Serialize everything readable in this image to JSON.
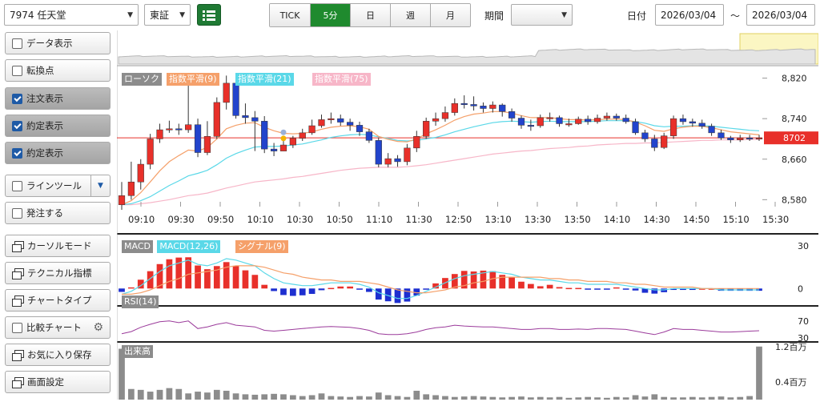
{
  "toolbar": {
    "stock": "7974 任天堂",
    "market": "東証",
    "tabs": [
      "TICK",
      "5分",
      "日",
      "週",
      "月"
    ],
    "active_tab": "5分",
    "period_label": "期間",
    "period_value": "",
    "date_label": "日付",
    "date_from": "2026/03/04",
    "tilde": "～",
    "date_to": "2026/03/04"
  },
  "sidebar": {
    "items": [
      {
        "label": "データ表示",
        "kind": "check",
        "checked": false,
        "active": false
      },
      {
        "label": "転換点",
        "kind": "check",
        "checked": false,
        "active": false
      },
      {
        "label": "注文表示",
        "kind": "check",
        "checked": true,
        "active": true
      },
      {
        "label": "約定表示",
        "kind": "check",
        "checked": true,
        "active": true
      },
      {
        "label": "約定表示",
        "kind": "check",
        "checked": true,
        "active": true
      },
      {
        "label": "ラインツール",
        "kind": "check-dd",
        "checked": false,
        "active": false
      },
      {
        "label": "発注する",
        "kind": "check",
        "checked": false,
        "active": false
      },
      {
        "label": "カーソルモード",
        "kind": "icon",
        "checked": false,
        "active": false
      },
      {
        "label": "テクニカル指標",
        "kind": "icon",
        "checked": false,
        "active": false
      },
      {
        "label": "チャートタイプ",
        "kind": "icon",
        "checked": false,
        "active": false
      },
      {
        "label": "比較チャート",
        "kind": "check-gear",
        "checked": false,
        "active": false
      },
      {
        "label": "お気に入り保存",
        "kind": "icon",
        "checked": false,
        "active": false
      },
      {
        "label": "画面設定",
        "kind": "icon",
        "checked": false,
        "active": false
      }
    ]
  },
  "legend": {
    "price": [
      {
        "label": "ローソク",
        "color": "#8c8c8c"
      },
      {
        "label": "指数平滑(9)",
        "color": "#f5a06a"
      },
      {
        "label": "指数平滑(21)",
        "color": "#5ad8e8"
      },
      {
        "label": "指数平滑(75)",
        "color": "#f7b6c8"
      }
    ],
    "macd": [
      {
        "label": "MACD",
        "color": "#8c8c8c"
      },
      {
        "label": "MACD(12,26)",
        "color": "#5ad8e8"
      },
      {
        "label": "シグナル(9)",
        "color": "#f5a06a"
      }
    ],
    "rsi": [
      {
        "label": "RSI(14)",
        "color": "#8c8c8c"
      }
    ],
    "volume": [
      {
        "label": "出来高",
        "color": "#8c8c8c"
      }
    ]
  },
  "colors": {
    "up": "#e8302a",
    "down": "#2244cc",
    "ema9": "#f5a06a",
    "ema21": "#5ad8e8",
    "ema75": "#f7b6c8",
    "rsi": "#9b3b9b",
    "volume": "#8c8c8c",
    "last_price": "#e8302a"
  },
  "price_axis": {
    "ticks": [
      {
        "value": 8820,
        "label": "8,820"
      },
      {
        "value": 8740,
        "label": "8,740"
      },
      {
        "value": 8660,
        "label": "8,660"
      },
      {
        "value": 8580,
        "label": "8,580"
      }
    ],
    "last_price": 8702,
    "last_label": "8702"
  },
  "time_axis": [
    "09:10",
    "09:30",
    "09:50",
    "10:10",
    "10:30",
    "10:50",
    "11:10",
    "11:30",
    "12:50",
    "13:10",
    "13:30",
    "13:50",
    "14:10",
    "14:30",
    "14:50",
    "15:10",
    "15:30"
  ],
  "macd_axis": [
    {
      "value": 30,
      "label": "30"
    },
    {
      "value": 0,
      "label": "0"
    }
  ],
  "rsi_axis": [
    {
      "value": 70,
      "label": "70"
    },
    {
      "value": 30,
      "label": "30"
    }
  ],
  "volume_axis": [
    {
      "value": 1.2,
      "label": "1.2百万"
    },
    {
      "value": 0.4,
      "label": "0.4百万"
    }
  ],
  "chart_data": {
    "type": "candlestick",
    "x": [
      "09:00",
      "09:05",
      "09:10",
      "09:15",
      "09:20",
      "09:25",
      "09:30",
      "09:35",
      "09:40",
      "09:45",
      "09:50",
      "09:55",
      "10:00",
      "10:05",
      "10:10",
      "10:15",
      "10:20",
      "10:25",
      "10:30",
      "10:35",
      "10:40",
      "10:45",
      "10:50",
      "10:55",
      "11:00",
      "11:05",
      "11:10",
      "11:15",
      "11:20",
      "11:25",
      "11:30",
      "12:30",
      "12:35",
      "12:40",
      "12:45",
      "12:50",
      "12:55",
      "13:00",
      "13:05",
      "13:10",
      "13:15",
      "13:20",
      "13:25",
      "13:30",
      "13:35",
      "13:40",
      "13:45",
      "13:50",
      "13:55",
      "14:00",
      "14:05",
      "14:10",
      "14:15",
      "14:20",
      "14:25",
      "14:30",
      "14:35",
      "14:40",
      "14:45",
      "14:50",
      "14:55",
      "15:00",
      "15:05",
      "15:10",
      "15:15",
      "15:20",
      "15:25",
      "15:30"
    ],
    "open": [
      8570,
      8588,
      8615,
      8650,
      8700,
      8718,
      8720,
      8718,
      8728,
      8673,
      8705,
      8772,
      8810,
      8746,
      8742,
      8735,
      8680,
      8676,
      8688,
      8701,
      8712,
      8726,
      8738,
      8740,
      8733,
      8727,
      8714,
      8697,
      8650,
      8661,
      8655,
      8682,
      8705,
      8735,
      8740,
      8752,
      8770,
      8768,
      8765,
      8760,
      8767,
      8754,
      8741,
      8727,
      8726,
      8742,
      8742,
      8730,
      8730,
      8739,
      8734,
      8741,
      8745,
      8741,
      8734,
      8712,
      8700,
      8683,
      8706,
      8740,
      8734,
      8731,
      8725,
      8712,
      8702,
      8698,
      8702,
      8700
    ],
    "open_unused": [],
    "close": [
      8588,
      8615,
      8650,
      8700,
      8718,
      8720,
      8718,
      8728,
      8673,
      8705,
      8772,
      8810,
      8746,
      8742,
      8735,
      8680,
      8676,
      8688,
      8701,
      8712,
      8726,
      8738,
      8740,
      8733,
      8727,
      8714,
      8697,
      8650,
      8661,
      8655,
      8682,
      8705,
      8735,
      8740,
      8752,
      8770,
      8768,
      8765,
      8760,
      8767,
      8754,
      8741,
      8727,
      8726,
      8742,
      8742,
      8730,
      8730,
      8739,
      8734,
      8741,
      8745,
      8741,
      8734,
      8712,
      8700,
      8683,
      8706,
      8740,
      8734,
      8731,
      8725,
      8712,
      8702,
      8698,
      8702,
      8700,
      8702
    ],
    "high": [
      8615,
      8655,
      8660,
      8710,
      8730,
      8736,
      8730,
      8812,
      8740,
      8735,
      8782,
      8825,
      8820,
      8770,
      8755,
      8745,
      8692,
      8696,
      8706,
      8720,
      8738,
      8748,
      8752,
      8748,
      8740,
      8734,
      8720,
      8702,
      8672,
      8668,
      8690,
      8716,
      8742,
      8752,
      8764,
      8780,
      8786,
      8784,
      8772,
      8774,
      8770,
      8760,
      8746,
      8738,
      8748,
      8752,
      8746,
      8740,
      8744,
      8746,
      8748,
      8752,
      8750,
      8748,
      8740,
      8718,
      8708,
      8712,
      8746,
      8748,
      8740,
      8738,
      8730,
      8718,
      8706,
      8708,
      8708,
      8708
    ],
    "low": [
      8560,
      8580,
      8600,
      8640,
      8692,
      8712,
      8708,
      8712,
      8664,
      8668,
      8700,
      8758,
      8740,
      8730,
      8676,
      8672,
      8666,
      8676,
      8682,
      8696,
      8708,
      8722,
      8730,
      8726,
      8716,
      8706,
      8692,
      8644,
      8644,
      8645,
      8648,
      8674,
      8700,
      8726,
      8734,
      8746,
      8760,
      8756,
      8752,
      8752,
      8744,
      8734,
      8720,
      8716,
      8722,
      8734,
      8724,
      8724,
      8728,
      8728,
      8730,
      8736,
      8736,
      8730,
      8708,
      8694,
      8676,
      8680,
      8700,
      8728,
      8724,
      8720,
      8706,
      8698,
      8692,
      8694,
      8696,
      8696
    ],
    "ema9": [
      8570,
      8578,
      8594,
      8615,
      8637,
      8655,
      8667,
      8678,
      8676,
      8683,
      8700,
      8720,
      8727,
      8731,
      8732,
      8723,
      8716,
      8711,
      8710,
      8711,
      8714,
      8719,
      8723,
      8725,
      8726,
      8724,
      8719,
      8705,
      8699,
      8695,
      8694,
      8700,
      8710,
      8718,
      8727,
      8737,
      8744,
      8749,
      8751,
      8754,
      8754,
      8751,
      8746,
      8742,
      8742,
      8742,
      8740,
      8738,
      8738,
      8737,
      8738,
      8739,
      8739,
      8738,
      8733,
      8726,
      8717,
      8715,
      8720,
      8723,
      8725,
      8725,
      8722,
      8718,
      8714,
      8712,
      8710,
      8708
    ],
    "ema21": [
      8570,
      8572,
      8578,
      8586,
      8597,
      8608,
      8617,
      8627,
      8632,
      8638,
      8649,
      8662,
      8671,
      8678,
      8684,
      8685,
      8685,
      8686,
      8688,
      8690,
      8694,
      8698,
      8703,
      8706,
      8708,
      8709,
      8708,
      8704,
      8701,
      8697,
      8696,
      8697,
      8700,
      8703,
      8708,
      8714,
      8719,
      8724,
      8728,
      8732,
      8734,
      8735,
      8734,
      8733,
      8734,
      8735,
      8734,
      8734,
      8734,
      8734,
      8735,
      8736,
      8736,
      8736,
      8734,
      8731,
      8726,
      8724,
      8725,
      8725,
      8726,
      8726,
      8725,
      8723,
      8721,
      8719,
      8717,
      8716
    ],
    "ema75": [
      8570,
      8570,
      8572,
      8574,
      8577,
      8580,
      8584,
      8588,
      8590,
      8593,
      8598,
      8603,
      8607,
      8611,
      8615,
      8617,
      8619,
      8621,
      8624,
      8626,
      8629,
      8632,
      8635,
      8638,
      8640,
      8642,
      8643,
      8644,
      8644,
      8644,
      8645,
      8647,
      8649,
      8652,
      8655,
      8658,
      8661,
      8664,
      8667,
      8670,
      8672,
      8674,
      8676,
      8677,
      8679,
      8681,
      8682,
      8683,
      8685,
      8686,
      8688,
      8689,
      8690,
      8691,
      8691,
      8692,
      8692,
      8693,
      8694,
      8695,
      8696,
      8697,
      8697,
      8698,
      8698,
      8698,
      8699,
      8699
    ],
    "macd": [
      -4,
      -2,
      2,
      7,
      12,
      16,
      18,
      20,
      17,
      16,
      18,
      21,
      20,
      18,
      16,
      11,
      7,
      4,
      3,
      2,
      2,
      3,
      4,
      4,
      4,
      3,
      1,
      -3,
      -5,
      -7,
      -7,
      -5,
      -2,
      1,
      4,
      7,
      9,
      10,
      11,
      12,
      11,
      10,
      8,
      7,
      6,
      6,
      5,
      4,
      4,
      3,
      3,
      3,
      3,
      2,
      1,
      0,
      -1,
      -1,
      0,
      0,
      0,
      0,
      0,
      -1,
      -1,
      -1,
      -1,
      -1
    ],
    "signal": [
      -4,
      -4,
      -3,
      -1,
      2,
      5,
      7,
      10,
      11,
      12,
      13,
      15,
      16,
      16,
      16,
      15,
      13,
      11,
      10,
      8,
      7,
      6,
      6,
      5,
      5,
      5,
      4,
      3,
      1,
      -1,
      -2,
      -3,
      -3,
      -2,
      -1,
      1,
      2,
      4,
      5,
      7,
      8,
      8,
      8,
      8,
      8,
      7,
      7,
      6,
      6,
      5,
      5,
      5,
      4,
      4,
      3,
      3,
      2,
      1,
      1,
      1,
      1,
      0,
      0,
      0,
      0,
      0,
      0,
      0
    ],
    "rsi": [
      40,
      45,
      55,
      62,
      68,
      70,
      66,
      70,
      52,
      56,
      62,
      66,
      60,
      58,
      56,
      48,
      46,
      48,
      50,
      52,
      54,
      56,
      57,
      56,
      55,
      52,
      48,
      40,
      38,
      38,
      40,
      44,
      50,
      54,
      56,
      60,
      58,
      57,
      56,
      56,
      54,
      52,
      50,
      50,
      52,
      52,
      50,
      50,
      51,
      50,
      52,
      52,
      51,
      50,
      46,
      42,
      38,
      44,
      52,
      50,
      50,
      48,
      46,
      44,
      44,
      45,
      46,
      47
    ],
    "volume": [
      1.15,
      0.24,
      0.22,
      0.18,
      0.22,
      0.26,
      0.24,
      0.14,
      0.18,
      0.16,
      0.22,
      0.2,
      0.14,
      0.12,
      0.11,
      0.12,
      0.13,
      0.12,
      0.1,
      0.08,
      0.1,
      0.14,
      0.08,
      0.07,
      0.06,
      0.08,
      0.07,
      0.16,
      0.1,
      0.08,
      0.06,
      0.2,
      0.12,
      0.1,
      0.08,
      0.06,
      0.07,
      0.08,
      0.07,
      0.06,
      0.05,
      0.06,
      0.07,
      0.05,
      0.06,
      0.05,
      0.06,
      0.04,
      0.05,
      0.06,
      0.05,
      0.04,
      0.06,
      0.05,
      0.1,
      0.07,
      0.12,
      0.06,
      0.05,
      0.05,
      0.06,
      0.05,
      0.06,
      0.07,
      0.05,
      0.06,
      0.08,
      1.2
    ],
    "title": "",
    "xlabel": "",
    "ylabel": ""
  }
}
